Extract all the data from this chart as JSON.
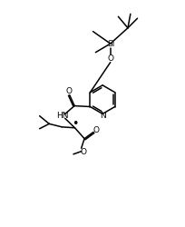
{
  "bg_color": "#ffffff",
  "line_color": "#000000",
  "lw": 1.1,
  "fs": 6.5,
  "xlim": [
    0,
    10
  ],
  "ylim": [
    0,
    13
  ]
}
